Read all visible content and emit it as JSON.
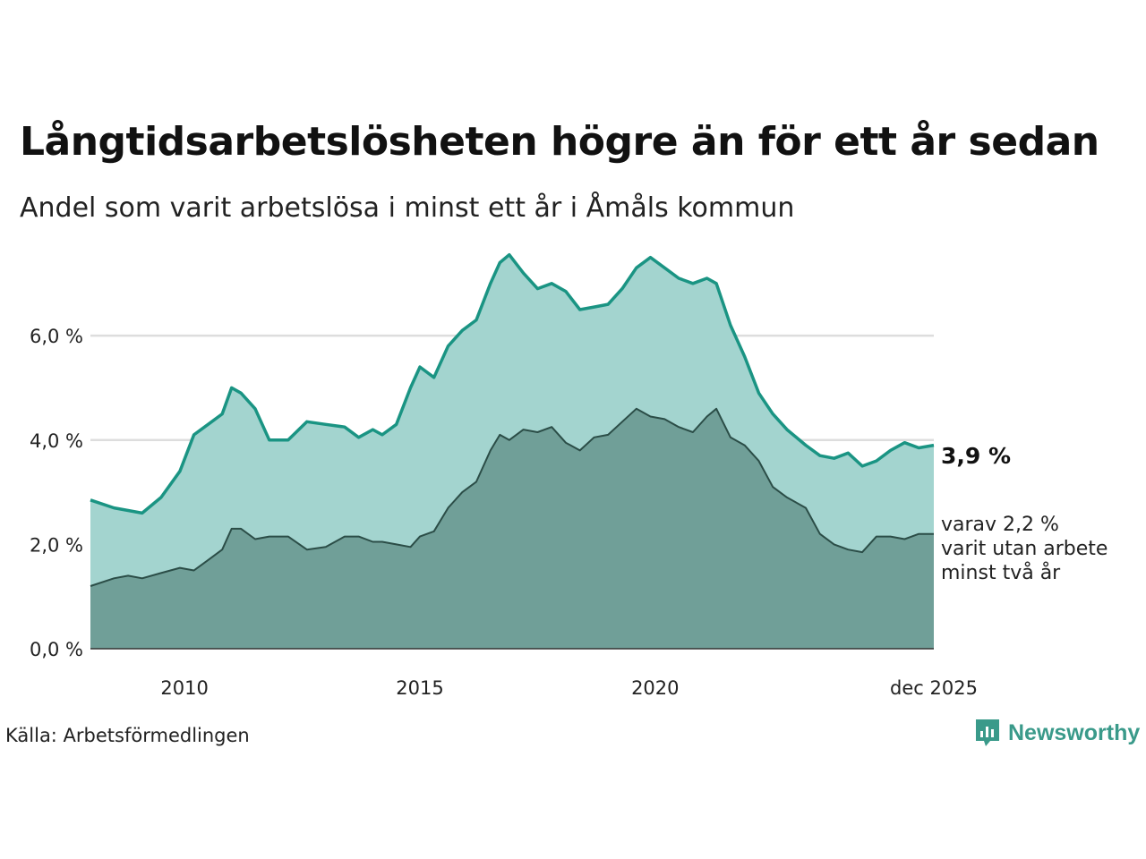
{
  "title": "Långtidsarbetslösheten högre än för ett år sedan",
  "subtitle": "Andel som varit arbetslösa i minst ett år i Åmåls kommun",
  "source": "Källa: Arbetsförmedlingen",
  "brand": "Newsworthy",
  "colors": {
    "line_total": "#1a9483",
    "area_total": "#a3d4cf",
    "line_two_year": "#2b4d47",
    "area_two_year": "#709f98",
    "grid": "#dddddd",
    "brand": "#3a9a8a"
  },
  "annotations": {
    "total_label": "3,9 %",
    "two_year_line1": "varav 2,2 %",
    "two_year_line2": "varit utan arbete",
    "two_year_line3": "minst två år"
  },
  "chart_data": {
    "type": "area",
    "title": "Långtidsarbetslösheten högre än för ett år sedan",
    "xlabel": "",
    "ylabel": "",
    "ylim": [
      0,
      7.7
    ],
    "xlim": [
      2008.0,
      2025.92
    ],
    "y_ticks": [
      {
        "value": 0,
        "label": "0,0 %"
      },
      {
        "value": 2,
        "label": "2,0 %"
      },
      {
        "value": 4,
        "label": "4,0 %"
      },
      {
        "value": 6,
        "label": "6,0 %"
      }
    ],
    "x_ticks": [
      {
        "value": 2010.0,
        "label": "2010"
      },
      {
        "value": 2015.0,
        "label": "2015"
      },
      {
        "value": 2020.0,
        "label": "2020"
      },
      {
        "value": 2025.92,
        "label": "dec 2025"
      }
    ],
    "series": [
      {
        "name": "Arbetslösa minst ett år",
        "x": [
          2008.0,
          2008.5,
          2008.8,
          2009.1,
          2009.5,
          2009.9,
          2010.2,
          2010.5,
          2010.8,
          2011.0,
          2011.2,
          2011.5,
          2011.8,
          2012.2,
          2012.6,
          2013.0,
          2013.4,
          2013.7,
          2014.0,
          2014.2,
          2014.5,
          2014.8,
          2015.0,
          2015.3,
          2015.6,
          2015.9,
          2016.2,
          2016.5,
          2016.7,
          2016.9,
          2017.2,
          2017.5,
          2017.8,
          2018.1,
          2018.4,
          2018.7,
          2019.0,
          2019.3,
          2019.6,
          2019.9,
          2020.2,
          2020.5,
          2020.8,
          2021.1,
          2021.3,
          2021.6,
          2021.9,
          2022.2,
          2022.5,
          2022.8,
          2023.2,
          2023.5,
          2023.8,
          2024.1,
          2024.4,
          2024.7,
          2025.0,
          2025.3,
          2025.6,
          2025.92
        ],
        "values": [
          2.85,
          2.7,
          2.65,
          2.6,
          2.9,
          3.4,
          4.1,
          4.3,
          4.5,
          5.0,
          4.9,
          4.6,
          4.0,
          4.0,
          4.35,
          4.3,
          4.25,
          4.05,
          4.2,
          4.1,
          4.3,
          5.0,
          5.4,
          5.2,
          5.8,
          6.1,
          6.3,
          7.0,
          7.4,
          7.55,
          7.2,
          6.9,
          7.0,
          6.85,
          6.5,
          6.55,
          6.6,
          6.9,
          7.3,
          7.5,
          7.3,
          7.1,
          7.0,
          7.1,
          7.0,
          6.2,
          5.6,
          4.9,
          4.5,
          4.2,
          3.9,
          3.7,
          3.65,
          3.75,
          3.5,
          3.6,
          3.8,
          3.95,
          3.85,
          3.9
        ]
      },
      {
        "name": "Varav minst två år",
        "x": [
          2008.0,
          2008.5,
          2008.8,
          2009.1,
          2009.5,
          2009.9,
          2010.2,
          2010.5,
          2010.8,
          2011.0,
          2011.2,
          2011.5,
          2011.8,
          2012.2,
          2012.6,
          2013.0,
          2013.4,
          2013.7,
          2014.0,
          2014.2,
          2014.5,
          2014.8,
          2015.0,
          2015.3,
          2015.6,
          2015.9,
          2016.2,
          2016.5,
          2016.7,
          2016.9,
          2017.2,
          2017.5,
          2017.8,
          2018.1,
          2018.4,
          2018.7,
          2019.0,
          2019.3,
          2019.6,
          2019.9,
          2020.2,
          2020.5,
          2020.8,
          2021.1,
          2021.3,
          2021.6,
          2021.9,
          2022.2,
          2022.5,
          2022.8,
          2023.2,
          2023.5,
          2023.8,
          2024.1,
          2024.4,
          2024.7,
          2025.0,
          2025.3,
          2025.6,
          2025.92
        ],
        "values": [
          1.2,
          1.35,
          1.4,
          1.35,
          1.45,
          1.55,
          1.5,
          1.7,
          1.9,
          2.3,
          2.3,
          2.1,
          2.15,
          2.15,
          1.9,
          1.95,
          2.15,
          2.15,
          2.05,
          2.05,
          2.0,
          1.95,
          2.15,
          2.25,
          2.7,
          3.0,
          3.2,
          3.8,
          4.1,
          4.0,
          4.2,
          4.15,
          4.25,
          3.95,
          3.8,
          4.05,
          4.1,
          4.35,
          4.6,
          4.45,
          4.4,
          4.25,
          4.15,
          4.45,
          4.6,
          4.05,
          3.9,
          3.6,
          3.1,
          2.9,
          2.7,
          2.2,
          2.0,
          1.9,
          1.85,
          2.15,
          2.15,
          2.1,
          2.2,
          2.2
        ]
      }
    ]
  }
}
